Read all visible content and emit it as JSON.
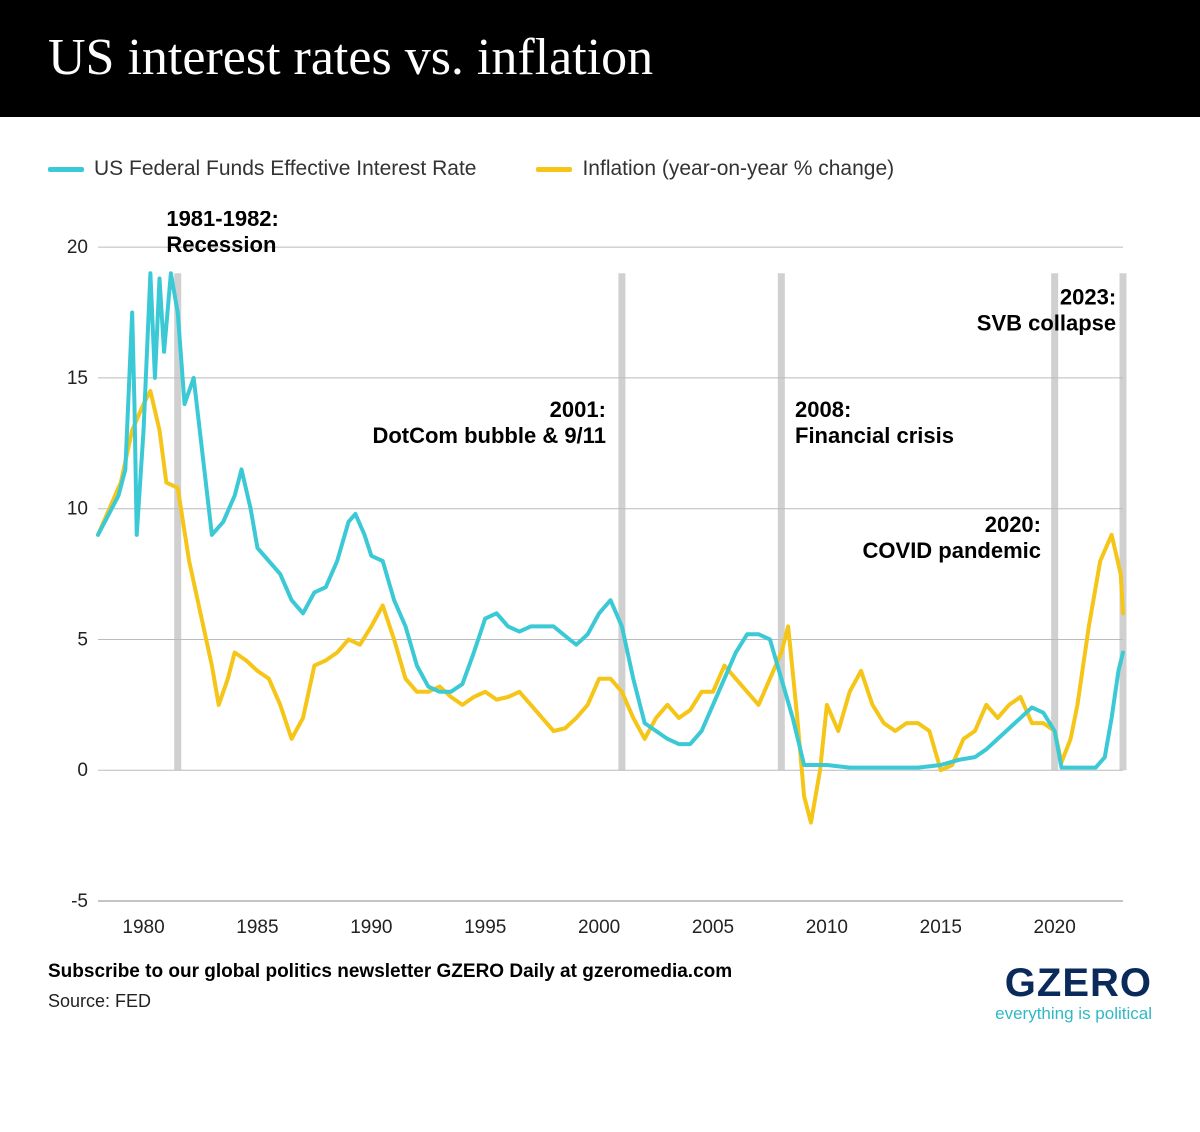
{
  "header": {
    "title": "US interest rates vs. inflation"
  },
  "legend": {
    "series1": {
      "label": "US Federal Funds Effective Interest Rate",
      "color": "#3cc9d6"
    },
    "series2": {
      "label": "Inflation (year-on-year % change)",
      "color": "#f5c518"
    }
  },
  "chart": {
    "type": "line",
    "background": "#ffffff",
    "xlim": [
      1978,
      2023
    ],
    "ylim": [
      -5,
      21
    ],
    "xticks": [
      1980,
      1985,
      1990,
      1995,
      2000,
      2005,
      2010,
      2015,
      2020
    ],
    "yticks": [
      -5,
      0,
      5,
      10,
      15,
      20
    ],
    "grid_color": "#bbbbbb",
    "event_line_color": "#d0d0d0",
    "event_line_width": 7,
    "line_width": 4,
    "annotations": [
      {
        "x": 1981.5,
        "label1": "1981-1982:",
        "label2": "Recession",
        "textX": 1981,
        "textY": 20.8,
        "align": "start"
      },
      {
        "x": 2001,
        "label1": "2001:",
        "label2": "DotCom bubble & 9/11",
        "textX": 2000.3,
        "textY": 13.5,
        "align": "end"
      },
      {
        "x": 2008,
        "label1": "2008:",
        "label2": "Financial crisis",
        "textX": 2008.6,
        "textY": 13.5,
        "align": "start"
      },
      {
        "x": 2020,
        "label1": "2020:",
        "label2": "COVID pandemic",
        "textX": 2019.4,
        "textY": 9.1,
        "align": "end"
      },
      {
        "x": 2023,
        "label1": "2023:",
        "label2": "SVB collapse",
        "textX": 2022.7,
        "textY": 17.8,
        "align": "end"
      }
    ],
    "series": {
      "fed_funds": {
        "color": "#3cc9d6",
        "data": [
          [
            1978,
            9.0
          ],
          [
            1978.3,
            9.5
          ],
          [
            1978.6,
            10.0
          ],
          [
            1978.9,
            10.5
          ],
          [
            1979.2,
            11.5
          ],
          [
            1979.5,
            17.5
          ],
          [
            1979.6,
            14.0
          ],
          [
            1979.7,
            9.0
          ],
          [
            1980,
            13.0
          ],
          [
            1980.3,
            19.0
          ],
          [
            1980.5,
            15.0
          ],
          [
            1980.7,
            18.8
          ],
          [
            1980.9,
            16.0
          ],
          [
            1981.2,
            19.0
          ],
          [
            1981.5,
            17.5
          ],
          [
            1981.8,
            14.0
          ],
          [
            1982.2,
            15.0
          ],
          [
            1982.6,
            12.0
          ],
          [
            1983,
            9.0
          ],
          [
            1983.5,
            9.5
          ],
          [
            1984,
            10.5
          ],
          [
            1984.3,
            11.5
          ],
          [
            1984.7,
            10.0
          ],
          [
            1985,
            8.5
          ],
          [
            1985.5,
            8.0
          ],
          [
            1986,
            7.5
          ],
          [
            1986.5,
            6.5
          ],
          [
            1987,
            6.0
          ],
          [
            1987.5,
            6.8
          ],
          [
            1988,
            7.0
          ],
          [
            1988.5,
            8.0
          ],
          [
            1989,
            9.5
          ],
          [
            1989.3,
            9.8
          ],
          [
            1989.7,
            9.0
          ],
          [
            1990,
            8.2
          ],
          [
            1990.5,
            8.0
          ],
          [
            1991,
            6.5
          ],
          [
            1991.5,
            5.5
          ],
          [
            1992,
            4.0
          ],
          [
            1992.5,
            3.2
          ],
          [
            1993,
            3.0
          ],
          [
            1993.5,
            3.0
          ],
          [
            1994,
            3.3
          ],
          [
            1994.5,
            4.5
          ],
          [
            1995,
            5.8
          ],
          [
            1995.5,
            6.0
          ],
          [
            1996,
            5.5
          ],
          [
            1996.5,
            5.3
          ],
          [
            1997,
            5.5
          ],
          [
            1997.5,
            5.5
          ],
          [
            1998,
            5.5
          ],
          [
            1998.7,
            5.0
          ],
          [
            1999,
            4.8
          ],
          [
            1999.5,
            5.2
          ],
          [
            2000,
            6.0
          ],
          [
            2000.5,
            6.5
          ],
          [
            2001,
            5.5
          ],
          [
            2001.5,
            3.5
          ],
          [
            2002,
            1.8
          ],
          [
            2002.5,
            1.5
          ],
          [
            2003,
            1.2
          ],
          [
            2003.5,
            1.0
          ],
          [
            2004,
            1.0
          ],
          [
            2004.5,
            1.5
          ],
          [
            2005,
            2.5
          ],
          [
            2005.5,
            3.5
          ],
          [
            2006,
            4.5
          ],
          [
            2006.5,
            5.2
          ],
          [
            2007,
            5.2
          ],
          [
            2007.5,
            5.0
          ],
          [
            2008,
            3.5
          ],
          [
            2008.5,
            2.0
          ],
          [
            2009,
            0.2
          ],
          [
            2010,
            0.2
          ],
          [
            2011,
            0.1
          ],
          [
            2012,
            0.1
          ],
          [
            2013,
            0.1
          ],
          [
            2014,
            0.1
          ],
          [
            2015,
            0.2
          ],
          [
            2015.8,
            0.4
          ],
          [
            2016.5,
            0.5
          ],
          [
            2017,
            0.8
          ],
          [
            2017.5,
            1.2
          ],
          [
            2018,
            1.6
          ],
          [
            2018.5,
            2.0
          ],
          [
            2019,
            2.4
          ],
          [
            2019.5,
            2.2
          ],
          [
            2020,
            1.5
          ],
          [
            2020.3,
            0.1
          ],
          [
            2021,
            0.1
          ],
          [
            2021.8,
            0.1
          ],
          [
            2022.2,
            0.5
          ],
          [
            2022.5,
            2.0
          ],
          [
            2022.8,
            3.8
          ],
          [
            2023,
            4.5
          ]
        ]
      },
      "inflation": {
        "color": "#f5c518",
        "data": [
          [
            1978,
            9.0
          ],
          [
            1978.5,
            10.0
          ],
          [
            1979,
            11.0
          ],
          [
            1979.5,
            13.0
          ],
          [
            1980,
            14.0
          ],
          [
            1980.3,
            14.5
          ],
          [
            1980.7,
            13.0
          ],
          [
            1981,
            11.0
          ],
          [
            1981.5,
            10.8
          ],
          [
            1982,
            8.0
          ],
          [
            1982.5,
            6.0
          ],
          [
            1983,
            4.0
          ],
          [
            1983.3,
            2.5
          ],
          [
            1983.7,
            3.5
          ],
          [
            1984,
            4.5
          ],
          [
            1984.5,
            4.2
          ],
          [
            1985,
            3.8
          ],
          [
            1985.5,
            3.5
          ],
          [
            1986,
            2.5
          ],
          [
            1986.5,
            1.2
          ],
          [
            1987,
            2.0
          ],
          [
            1987.5,
            4.0
          ],
          [
            1988,
            4.2
          ],
          [
            1988.5,
            4.5
          ],
          [
            1989,
            5.0
          ],
          [
            1989.5,
            4.8
          ],
          [
            1990,
            5.5
          ],
          [
            1990.5,
            6.3
          ],
          [
            1991,
            5.0
          ],
          [
            1991.5,
            3.5
          ],
          [
            1992,
            3.0
          ],
          [
            1992.5,
            3.0
          ],
          [
            1993,
            3.2
          ],
          [
            1993.5,
            2.8
          ],
          [
            1994,
            2.5
          ],
          [
            1994.5,
            2.8
          ],
          [
            1995,
            3.0
          ],
          [
            1995.5,
            2.7
          ],
          [
            1996,
            2.8
          ],
          [
            1996.5,
            3.0
          ],
          [
            1997,
            2.5
          ],
          [
            1997.5,
            2.0
          ],
          [
            1998,
            1.5
          ],
          [
            1998.5,
            1.6
          ],
          [
            1999,
            2.0
          ],
          [
            1999.5,
            2.5
          ],
          [
            2000,
            3.5
          ],
          [
            2000.5,
            3.5
          ],
          [
            2001,
            3.0
          ],
          [
            2001.5,
            2.0
          ],
          [
            2002,
            1.2
          ],
          [
            2002.5,
            2.0
          ],
          [
            2003,
            2.5
          ],
          [
            2003.5,
            2.0
          ],
          [
            2004,
            2.3
          ],
          [
            2004.5,
            3.0
          ],
          [
            2005,
            3.0
          ],
          [
            2005.5,
            4.0
          ],
          [
            2006,
            3.5
          ],
          [
            2006.5,
            3.0
          ],
          [
            2007,
            2.5
          ],
          [
            2007.5,
            3.5
          ],
          [
            2008,
            4.5
          ],
          [
            2008.3,
            5.5
          ],
          [
            2008.7,
            2.0
          ],
          [
            2009,
            -1.0
          ],
          [
            2009.3,
            -2.0
          ],
          [
            2009.7,
            0.0
          ],
          [
            2010,
            2.5
          ],
          [
            2010.5,
            1.5
          ],
          [
            2011,
            3.0
          ],
          [
            2011.5,
            3.8
          ],
          [
            2012,
            2.5
          ],
          [
            2012.5,
            1.8
          ],
          [
            2013,
            1.5
          ],
          [
            2013.5,
            1.8
          ],
          [
            2014,
            1.8
          ],
          [
            2014.5,
            1.5
          ],
          [
            2015,
            0.0
          ],
          [
            2015.5,
            0.2
          ],
          [
            2016,
            1.2
          ],
          [
            2016.5,
            1.5
          ],
          [
            2017,
            2.5
          ],
          [
            2017.5,
            2.0
          ],
          [
            2018,
            2.5
          ],
          [
            2018.5,
            2.8
          ],
          [
            2019,
            1.8
          ],
          [
            2019.5,
            1.8
          ],
          [
            2020,
            1.5
          ],
          [
            2020.3,
            0.3
          ],
          [
            2020.7,
            1.2
          ],
          [
            2021,
            2.5
          ],
          [
            2021.5,
            5.5
          ],
          [
            2022,
            8.0
          ],
          [
            2022.5,
            9.0
          ],
          [
            2022.9,
            7.5
          ],
          [
            2023,
            6.0
          ]
        ]
      }
    }
  },
  "footer": {
    "subscribe": "Subscribe to our global politics newsletter GZERO Daily at gzeromedia.com",
    "source": "Source: FED",
    "brand_name": "GZERO",
    "brand_tag": "everything is political"
  }
}
